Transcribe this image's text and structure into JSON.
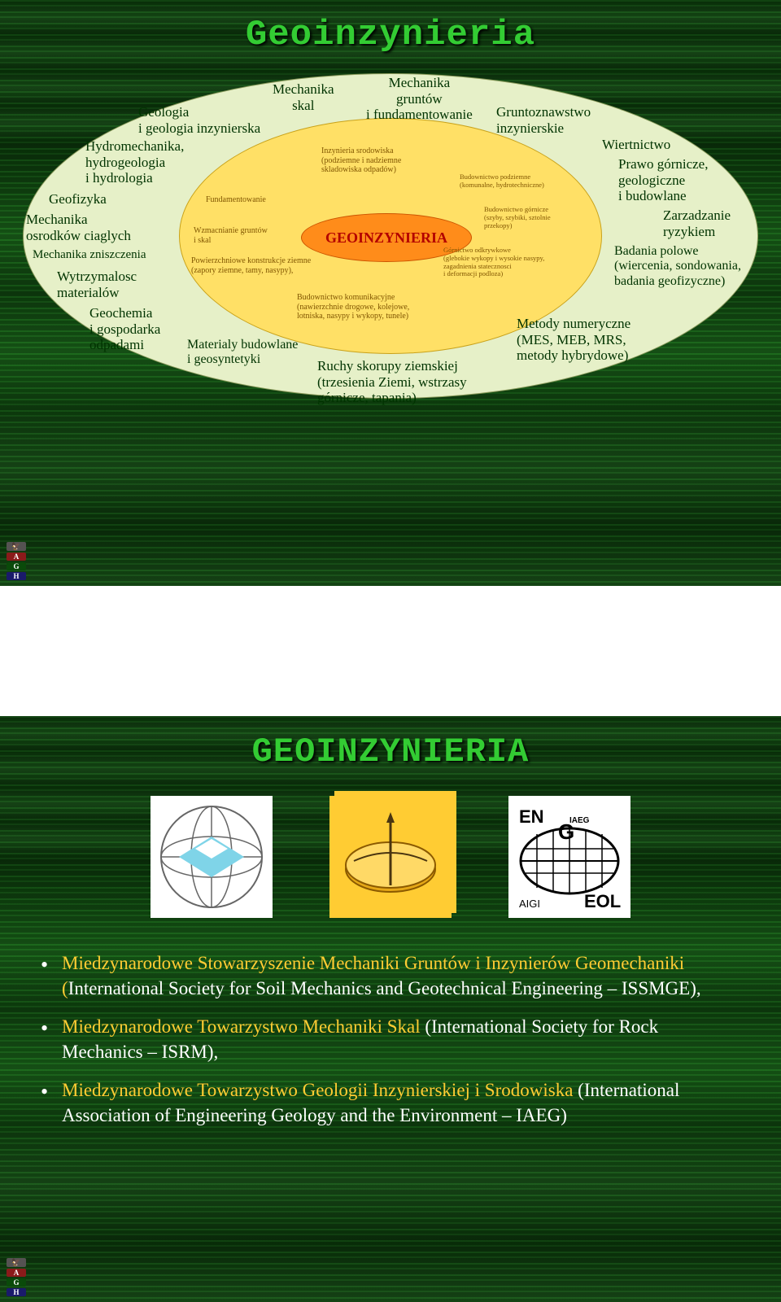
{
  "slide1": {
    "title": "Geoinzynieria",
    "core": "GEOINZYNIERIA",
    "outer_color": "#e6f0c8",
    "mid_color": "#ffe066",
    "core_color": "#ff8c1a",
    "outer": {
      "geologia": "Geologia\ni geologia inzynierska",
      "hydro": "Hydromechanika,\nhydrogeologia\ni hydrologia",
      "geofizyka": "Geofizyka",
      "mech_osr": "Mechanika\nosrodków ciaglych",
      "mech_znisz": "Mechanika zniszczenia",
      "wytrz": "Wytrzymalosc\nmaterialów",
      "geochem": "Geochemia\ni gospodarka\nodpadami",
      "mat_bud": "Materialy budowlane\ni geosyntetyki",
      "mech_skal": "Mechanika\nskal",
      "mech_grunt": "Mechanika\ngruntów\ni fundamentowanie",
      "grunto": "Gruntoznawstwo\ninzynierskie",
      "wiertnictwo": "Wiertnictwo",
      "prawo": "Prawo górnicze,\ngeologiczne\ni budowlane",
      "zarz": "Zarzadzanie\nryzykiem",
      "badania": "Badania polowe\n(wiercenia, sondowania,\nbadania geofizyczne)",
      "metody": "Metody numeryczne\n(MES, MEB, MRS,\nmetody hybrydowe)",
      "ruchy": "Ruchy skorupy ziemskiej\n(trzesienia Ziemi, wstrzasy\ngórnicze, tapania)"
    },
    "mid": {
      "inz_srod": "Inzynieria srodowiska\n(podziemne i nadziemne\nskladowiska odpadów)",
      "fund": "Fundamentowanie",
      "wzmac": "Wzmacnianie gruntów\ni skal",
      "pow_konstr": "Powierzchniowe konstrukcje ziemne\n(zapory ziemne, tamy, nasypy),",
      "bud_podz": "Budownictwo podziemne\n(komunalne, hydrotechniczne)",
      "bud_gorn": "Budownictwo górnicze\n(szyby, szybiki, sztolnie\nprzekopy)",
      "gorn_odkr": "Górnictwo odkrywkowe\n(glebokie wykopy i wysokie nasypy,\nzagadnienia statecznosci\ni deformacji podloza)",
      "bud_kom": "Budownictwo komunikacyjne\n(nawierzchnie drogowe, kolejowe,\nlotniska, nasypy i wykopy, tunele)"
    }
  },
  "slide2": {
    "title": "GEOINZYNIERIA",
    "bullets": [
      {
        "org": "Miedzynarodowe Stowarzyszenie Mechaniki Gruntów i Inzynierów Geomechaniki (",
        "rest": "International Society for Soil Mechanics and Geotechnical Engineering – ISSMGE),"
      },
      {
        "org": "Miedzynarodowe Towarzystwo Mechaniki Skal ",
        "rest": "(International Society for Rock Mechanics – ISRM),"
      },
      {
        "org": "Miedzynarodowe Towarzystwo Geologii Inzynierskiej i Srodowiska ",
        "rest": "(International Association of Engineering Geology and the Environment – IAEG)"
      }
    ]
  },
  "badge_colors": [
    "#8b1a1a",
    "#2e8b2e",
    "#1a1a8b"
  ]
}
